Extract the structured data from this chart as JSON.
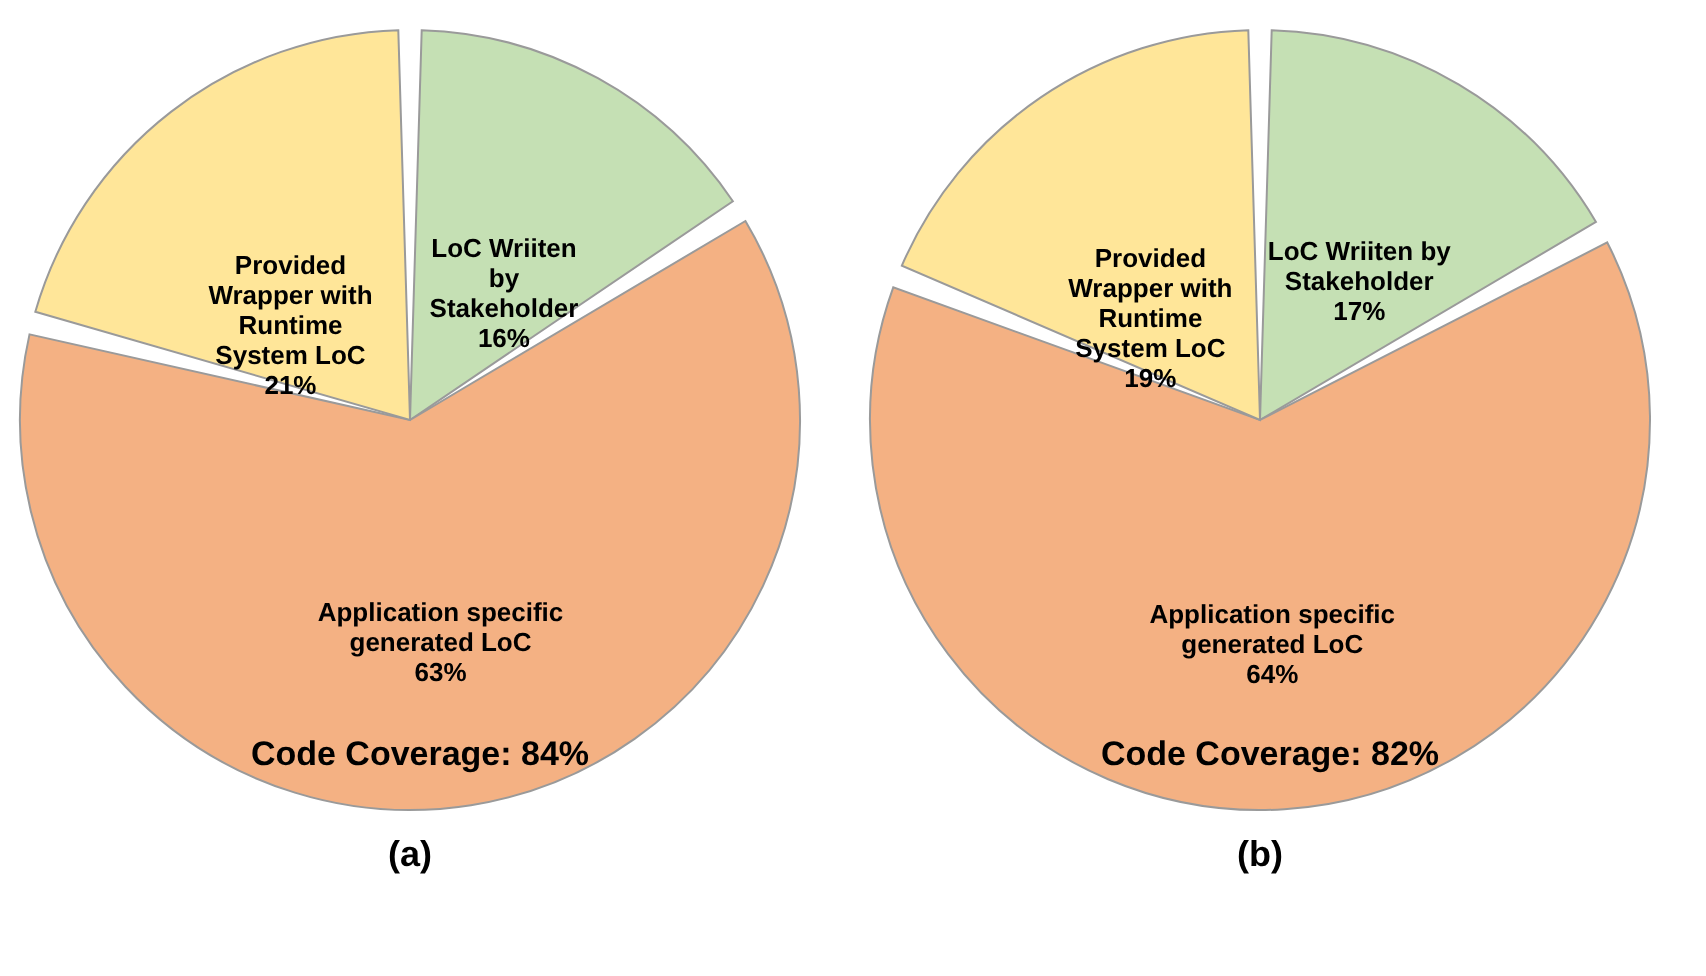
{
  "chart_data": [
    {
      "type": "pie",
      "title": "(a)",
      "categories": [
        "LoC Wriiten\nby\nStakeholder",
        "Application specific\ngenerated LoC",
        "Provided\nWrapper with\nRuntime\nSystem LoC"
      ],
      "values": [
        16,
        63,
        21
      ],
      "value_labels": [
        "16%",
        "63%",
        "21%"
      ],
      "colors": [
        "#c5e0b4",
        "#f4b183",
        "#ffe699"
      ],
      "annotations": [
        "Code Coverage: 84%"
      ],
      "legend": false
    },
    {
      "type": "pie",
      "title": "(b)",
      "categories": [
        "LoC Wriiten by\nStakeholder",
        "Application specific\ngenerated LoC",
        "Provided\nWrapper with\nRuntime\nSystem LoC"
      ],
      "values": [
        17,
        64,
        19
      ],
      "value_labels": [
        "17%",
        "64%",
        "19%"
      ],
      "colors": [
        "#c5e0b4",
        "#f4b183",
        "#ffe699"
      ],
      "annotations": [
        "Code Coverage: 82%"
      ],
      "legend": false
    }
  ]
}
